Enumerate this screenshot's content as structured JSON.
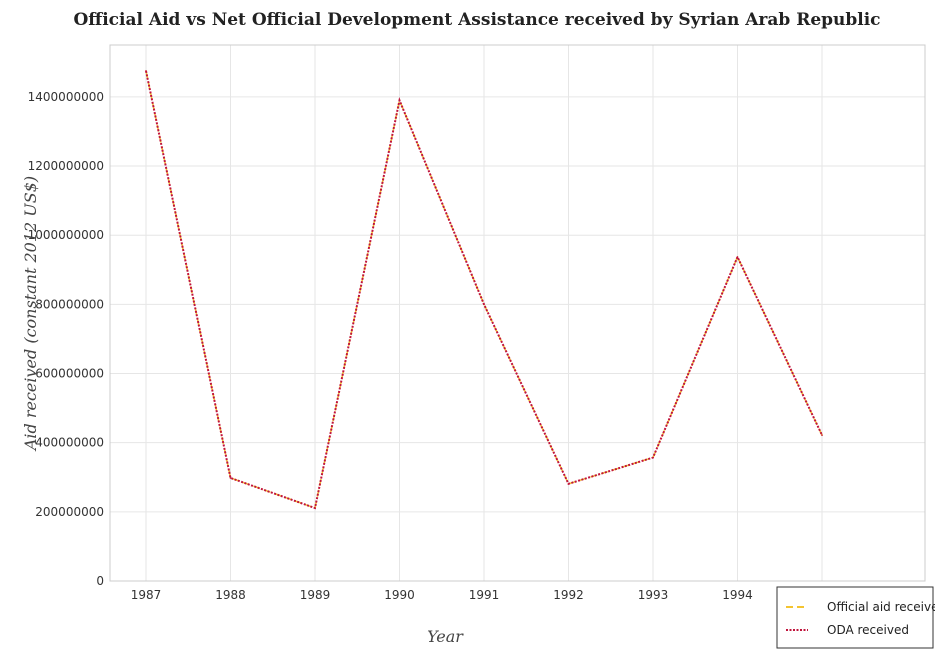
{
  "chart_data": {
    "type": "line",
    "title": "Official Aid vs Net Official Development Assistance received by Syrian Arab Republic",
    "xlabel": "Year",
    "ylabel": "Aid received (constant 2012 US$)",
    "categories": [
      "1987",
      "1988",
      "1989",
      "1990",
      "1991",
      "1992",
      "1993",
      "1994",
      "1995"
    ],
    "yticks": [
      "0",
      "200000000",
      "400000000",
      "600000000",
      "800000000",
      "1000000000",
      "1200000000",
      "1400000000"
    ],
    "ylim": [
      0,
      1550000000
    ],
    "grid": true,
    "legend_position": "bottom-right",
    "series": [
      {
        "name": "Official aid received",
        "color": "#f4c430",
        "style": "dashed",
        "values": [
          1475000000,
          298000000,
          211000000,
          1390000000,
          800000000,
          281000000,
          357000000,
          937000000,
          422000000
        ]
      },
      {
        "name": "ODA received",
        "color": "#c0143c",
        "style": "dotted",
        "values": [
          1475000000,
          298000000,
          211000000,
          1390000000,
          800000000,
          281000000,
          357000000,
          937000000,
          422000000
        ]
      }
    ]
  }
}
